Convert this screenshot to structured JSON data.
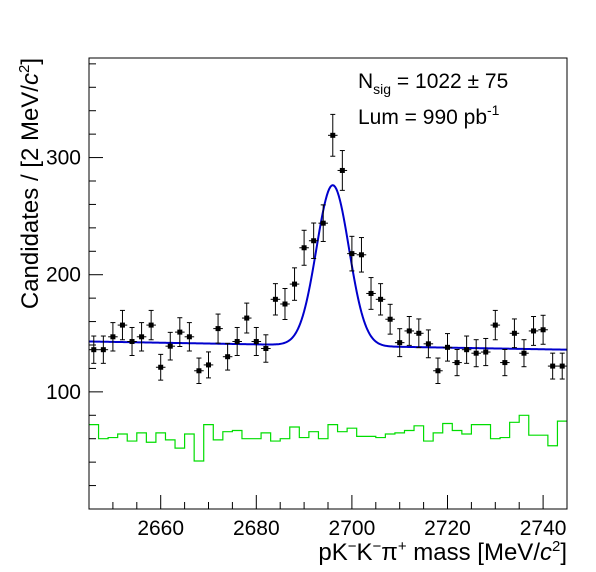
{
  "chart_data": {
    "type": "scatter",
    "xlabel": {
      "base": "pK",
      "sup1": "−",
      "mid": "K",
      "sup2": "−",
      "mid2": "π",
      "sup3": "+",
      "rest": " mass [MeV/",
      "c": "c",
      "sup4": "2",
      "close": "]"
    },
    "ylabel": {
      "base": "Candidates / [2 MeV/",
      "c": "c",
      "sup": "2",
      "close": "]"
    },
    "xlim": [
      2645,
      2745
    ],
    "ylim": [
      0,
      385
    ],
    "x_major_ticks": [
      2660,
      2680,
      2700,
      2720,
      2740
    ],
    "x_tick_labels": [
      "2660",
      "2680",
      "2700",
      "2720",
      "2740"
    ],
    "y_major_ticks": [
      100,
      200,
      300
    ],
    "y_tick_labels": [
      "100",
      "200",
      "300"
    ],
    "annotations": {
      "nsig_label": "N",
      "nsig_sub": "sig",
      "nsig_value": " =  1022 ± 75",
      "lum_label": "Lum =   990 pb",
      "lum_sup": "-1"
    },
    "colors": {
      "data": "#000000",
      "fit": "#0000cc",
      "background": "#00dd00"
    },
    "fit": {
      "background_left": 143,
      "background_right": 136,
      "peak_mean": 2696,
      "peak_sigma": 3.4,
      "peak_height": 137
    },
    "series": [
      {
        "type": "points",
        "x": [
          2646,
          2648,
          2650,
          2652,
          2654,
          2656,
          2658,
          2660,
          2662,
          2664,
          2666,
          2668,
          2670,
          2672,
          2674,
          2676,
          2678,
          2680,
          2682,
          2684,
          2686,
          2688,
          2690,
          2692,
          2694,
          2696,
          2698,
          2700,
          2702,
          2704,
          2706,
          2708,
          2710,
          2712,
          2714,
          2716,
          2718,
          2720,
          2722,
          2724,
          2726,
          2728,
          2730,
          2732,
          2734,
          2736,
          2738,
          2740,
          2742,
          2744
        ],
        "values": [
          136,
          136,
          147,
          157,
          143,
          147,
          157,
          121,
          139,
          151,
          147,
          118,
          123,
          154,
          130,
          143,
          163,
          143,
          137,
          179,
          175,
          192,
          223,
          229,
          244,
          319,
          289,
          218,
          217,
          184,
          179,
          162,
          142,
          152,
          150,
          141,
          118,
          138,
          125,
          136,
          133,
          134,
          157,
          125,
          150,
          133,
          152,
          153,
          122,
          122
        ]
      },
      {
        "type": "step",
        "x": [
          2645,
          2647,
          2649,
          2651,
          2653,
          2655,
          2657,
          2659,
          2661,
          2663,
          2665,
          2667,
          2669,
          2671,
          2673,
          2675,
          2677,
          2679,
          2681,
          2683,
          2685,
          2687,
          2689,
          2691,
          2693,
          2695,
          2697,
          2699,
          2701,
          2703,
          2705,
          2707,
          2709,
          2711,
          2713,
          2715,
          2717,
          2719,
          2721,
          2723,
          2725,
          2727,
          2729,
          2731,
          2733,
          2735,
          2737,
          2739,
          2741,
          2743
        ],
        "values": [
          72,
          60,
          61,
          64,
          58,
          65,
          57,
          65,
          59,
          52,
          64,
          41,
          72,
          59,
          66,
          67,
          60,
          60,
          65,
          58,
          60,
          70,
          61,
          66,
          60,
          72,
          66,
          69,
          62,
          62,
          61,
          64,
          65,
          67,
          71,
          58,
          65,
          73,
          67,
          64,
          72,
          72,
          60,
          61,
          74,
          80,
          63,
          63,
          54,
          75
        ]
      }
    ]
  }
}
